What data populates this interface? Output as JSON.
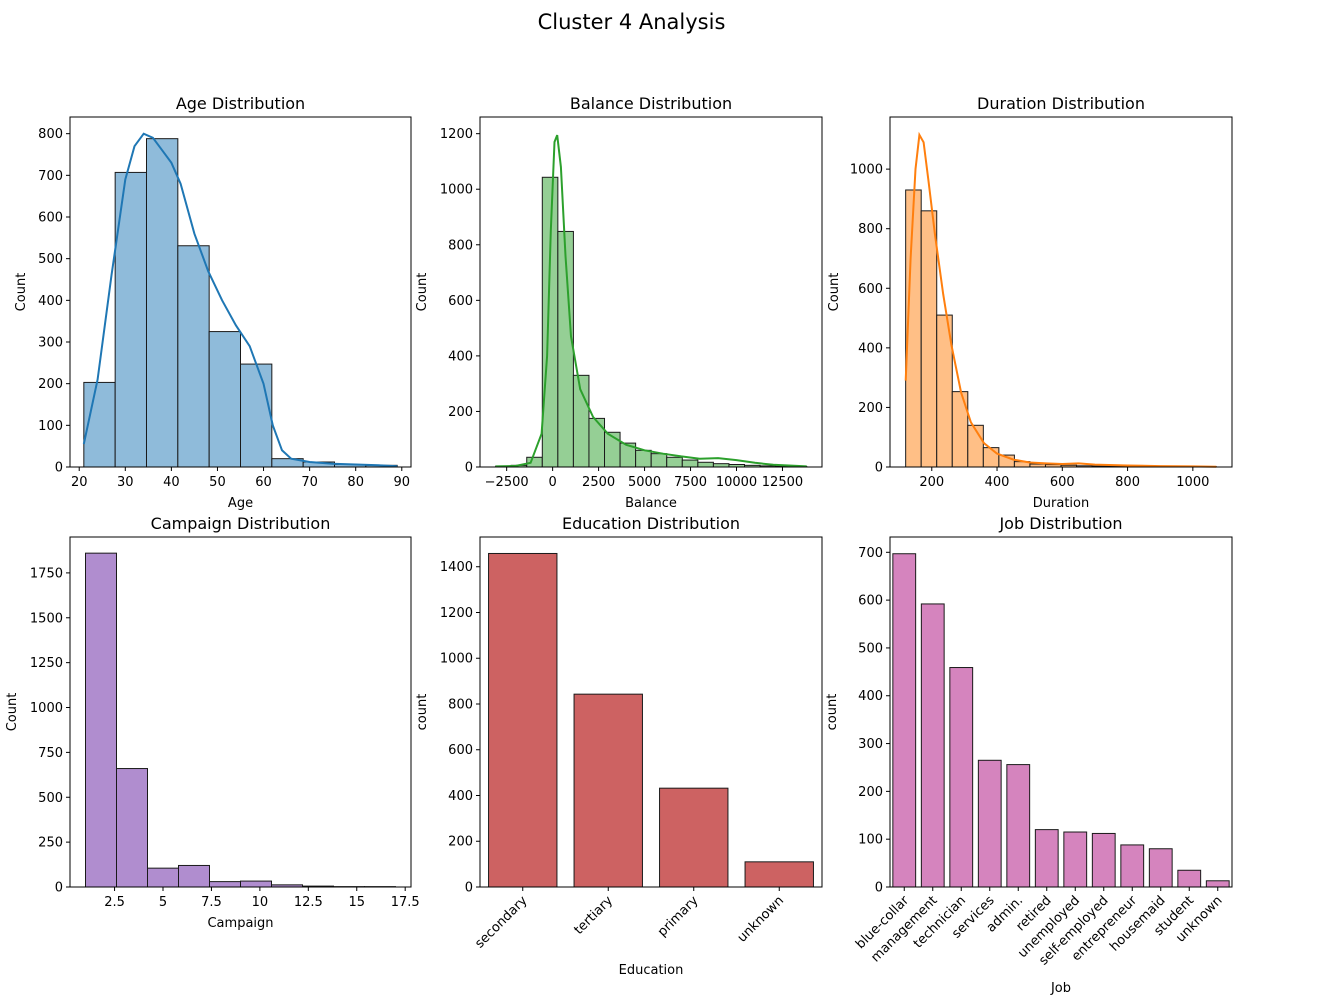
{
  "figure": {
    "title": "Cluster 4 Analysis"
  },
  "chart_data": [
    {
      "type": "bar",
      "title": "Age Distribution",
      "xlabel": "Age",
      "ylabel": "Count",
      "color": "#1f77b4",
      "bar_fill": "#8fbbda",
      "kde": true,
      "bin_edges": [
        21,
        27.8,
        34.6,
        41.4,
        48.2,
        55,
        61.8,
        68.6,
        75.4,
        82.2,
        89
      ],
      "values": [
        203,
        707,
        788,
        531,
        325,
        247,
        20,
        12,
        6,
        4
      ],
      "kde_points": [
        [
          21,
          55
        ],
        [
          24,
          210
        ],
        [
          27,
          460
        ],
        [
          30,
          690
        ],
        [
          32,
          770
        ],
        [
          34,
          800
        ],
        [
          36,
          790
        ],
        [
          38,
          760
        ],
        [
          40,
          730
        ],
        [
          42,
          680
        ],
        [
          45,
          560
        ],
        [
          48,
          470
        ],
        [
          51,
          400
        ],
        [
          54,
          340
        ],
        [
          57,
          290
        ],
        [
          60,
          200
        ],
        [
          62,
          100
        ],
        [
          64,
          40
        ],
        [
          66,
          20
        ],
        [
          70,
          12
        ],
        [
          75,
          8
        ],
        [
          80,
          6
        ],
        [
          85,
          4
        ],
        [
          89,
          2
        ]
      ],
      "xlim": [
        18,
        92
      ],
      "ylim": [
        0,
        840
      ],
      "xticks": [
        20,
        30,
        40,
        50,
        60,
        70,
        80,
        90
      ],
      "yticks": [
        0,
        100,
        200,
        300,
        400,
        500,
        600,
        700,
        800
      ]
    },
    {
      "type": "bar",
      "title": "Balance Distribution",
      "xlabel": "Balance",
      "ylabel": "Count",
      "color": "#2ca02c",
      "bar_fill": "#95cf95",
      "kde": true,
      "bin_edges": [
        -3100,
        -2254,
        -1408,
        -562,
        284,
        1130,
        1976,
        2822,
        3668,
        4514,
        5360,
        6206,
        7052,
        7898,
        8744,
        9590,
        10436,
        11282,
        12128,
        12974,
        13820
      ],
      "values": [
        3,
        6,
        35,
        1043,
        848,
        330,
        175,
        125,
        86,
        60,
        48,
        35,
        25,
        17,
        12,
        9,
        6,
        4,
        3,
        2
      ],
      "kde_points": [
        [
          -3100,
          2
        ],
        [
          -2000,
          4
        ],
        [
          -1200,
          15
        ],
        [
          -600,
          120
        ],
        [
          -300,
          400
        ],
        [
          -100,
          850
        ],
        [
          100,
          1170
        ],
        [
          250,
          1195
        ],
        [
          450,
          1080
        ],
        [
          700,
          760
        ],
        [
          1000,
          470
        ],
        [
          1500,
          280
        ],
        [
          2200,
          180
        ],
        [
          3000,
          120
        ],
        [
          4000,
          80
        ],
        [
          5000,
          60
        ],
        [
          6000,
          48
        ],
        [
          7000,
          38
        ],
        [
          8000,
          30
        ],
        [
          9000,
          32
        ],
        [
          10000,
          25
        ],
        [
          11000,
          15
        ],
        [
          12000,
          8
        ],
        [
          13820,
          2
        ]
      ],
      "xlim": [
        -3950,
        14650
      ],
      "ylim": [
        0,
        1260
      ],
      "xticks": [
        -2500,
        0,
        2500,
        5000,
        7500,
        10000,
        12500
      ],
      "yticks": [
        0,
        200,
        400,
        600,
        800,
        1000,
        1200
      ]
    },
    {
      "type": "bar",
      "title": "Duration Distribution",
      "xlabel": "Duration",
      "ylabel": "Count",
      "color": "#ff7f0e",
      "bar_fill": "#ffbf86",
      "kde": true,
      "bin_edges": [
        120,
        167.6,
        215.2,
        262.8,
        310.4,
        358,
        405.6,
        453.2,
        500.8,
        548.4,
        596,
        643.6,
        691.2,
        738.8,
        786.4,
        834,
        881.6,
        929.2,
        976.8,
        1024.4,
        1072
      ],
      "values": [
        930,
        860,
        510,
        253,
        140,
        65,
        40,
        18,
        10,
        8,
        6,
        4,
        3,
        2,
        2,
        1,
        1,
        1,
        1,
        1
      ],
      "kde_points": [
        [
          120,
          290
        ],
        [
          135,
          700
        ],
        [
          150,
          1000
        ],
        [
          162,
          1115
        ],
        [
          175,
          1090
        ],
        [
          190,
          960
        ],
        [
          210,
          780
        ],
        [
          235,
          580
        ],
        [
          260,
          410
        ],
        [
          290,
          250
        ],
        [
          320,
          150
        ],
        [
          360,
          80
        ],
        [
          400,
          45
        ],
        [
          450,
          25
        ],
        [
          500,
          15
        ],
        [
          550,
          12
        ],
        [
          600,
          10
        ],
        [
          650,
          12
        ],
        [
          700,
          8
        ],
        [
          800,
          5
        ],
        [
          900,
          3
        ],
        [
          1000,
          2
        ],
        [
          1072,
          1
        ]
      ],
      "xlim": [
        72,
        1120
      ],
      "ylim": [
        0,
        1175
      ],
      "xticks": [
        200,
        400,
        600,
        800,
        1000
      ],
      "yticks": [
        0,
        200,
        400,
        600,
        800,
        1000
      ]
    },
    {
      "type": "bar",
      "title": "Campaign Distribution",
      "xlabel": "Campaign",
      "ylabel": "Count",
      "color": "#9467bd",
      "bar_fill": "#b08dcf",
      "kde": false,
      "bin_edges": [
        1,
        2.6,
        4.2,
        5.8,
        7.4,
        9,
        10.6,
        12.2,
        13.8,
        15.4,
        17
      ],
      "values": [
        1860,
        660,
        105,
        120,
        30,
        33,
        12,
        5,
        2,
        2
      ],
      "xlim": [
        0.2,
        17.8
      ],
      "ylim": [
        0,
        1950
      ],
      "xticks": [
        2.5,
        5.0,
        7.5,
        10.0,
        12.5,
        15.0,
        17.5
      ],
      "yticks": [
        0,
        250,
        500,
        750,
        1000,
        1250,
        1500,
        1750
      ]
    },
    {
      "type": "bar",
      "title": "Education Distribution",
      "xlabel": "Education",
      "ylabel": "count",
      "color": "#cd6262",
      "categories": [
        "secondary",
        "tertiary",
        "primary",
        "unknown"
      ],
      "values": [
        1458,
        843,
        432,
        110
      ],
      "ylim": [
        0,
        1530
      ],
      "yticks": [
        0,
        200,
        400,
        600,
        800,
        1000,
        1200,
        1400
      ]
    },
    {
      "type": "bar",
      "title": "Job Distribution",
      "xlabel": "Job",
      "ylabel": "count",
      "color": "#d584be",
      "categories": [
        "blue-collar",
        "management",
        "technician",
        "services",
        "admin.",
        "retired",
        "unemployed",
        "self-employed",
        "entrepreneur",
        "housemaid",
        "student",
        "unknown"
      ],
      "values": [
        697,
        592,
        459,
        265,
        256,
        120,
        115,
        112,
        88,
        80,
        35,
        13
      ],
      "ylim": [
        0,
        732
      ],
      "yticks": [
        0,
        100,
        200,
        300,
        400,
        500,
        600,
        700
      ]
    }
  ]
}
